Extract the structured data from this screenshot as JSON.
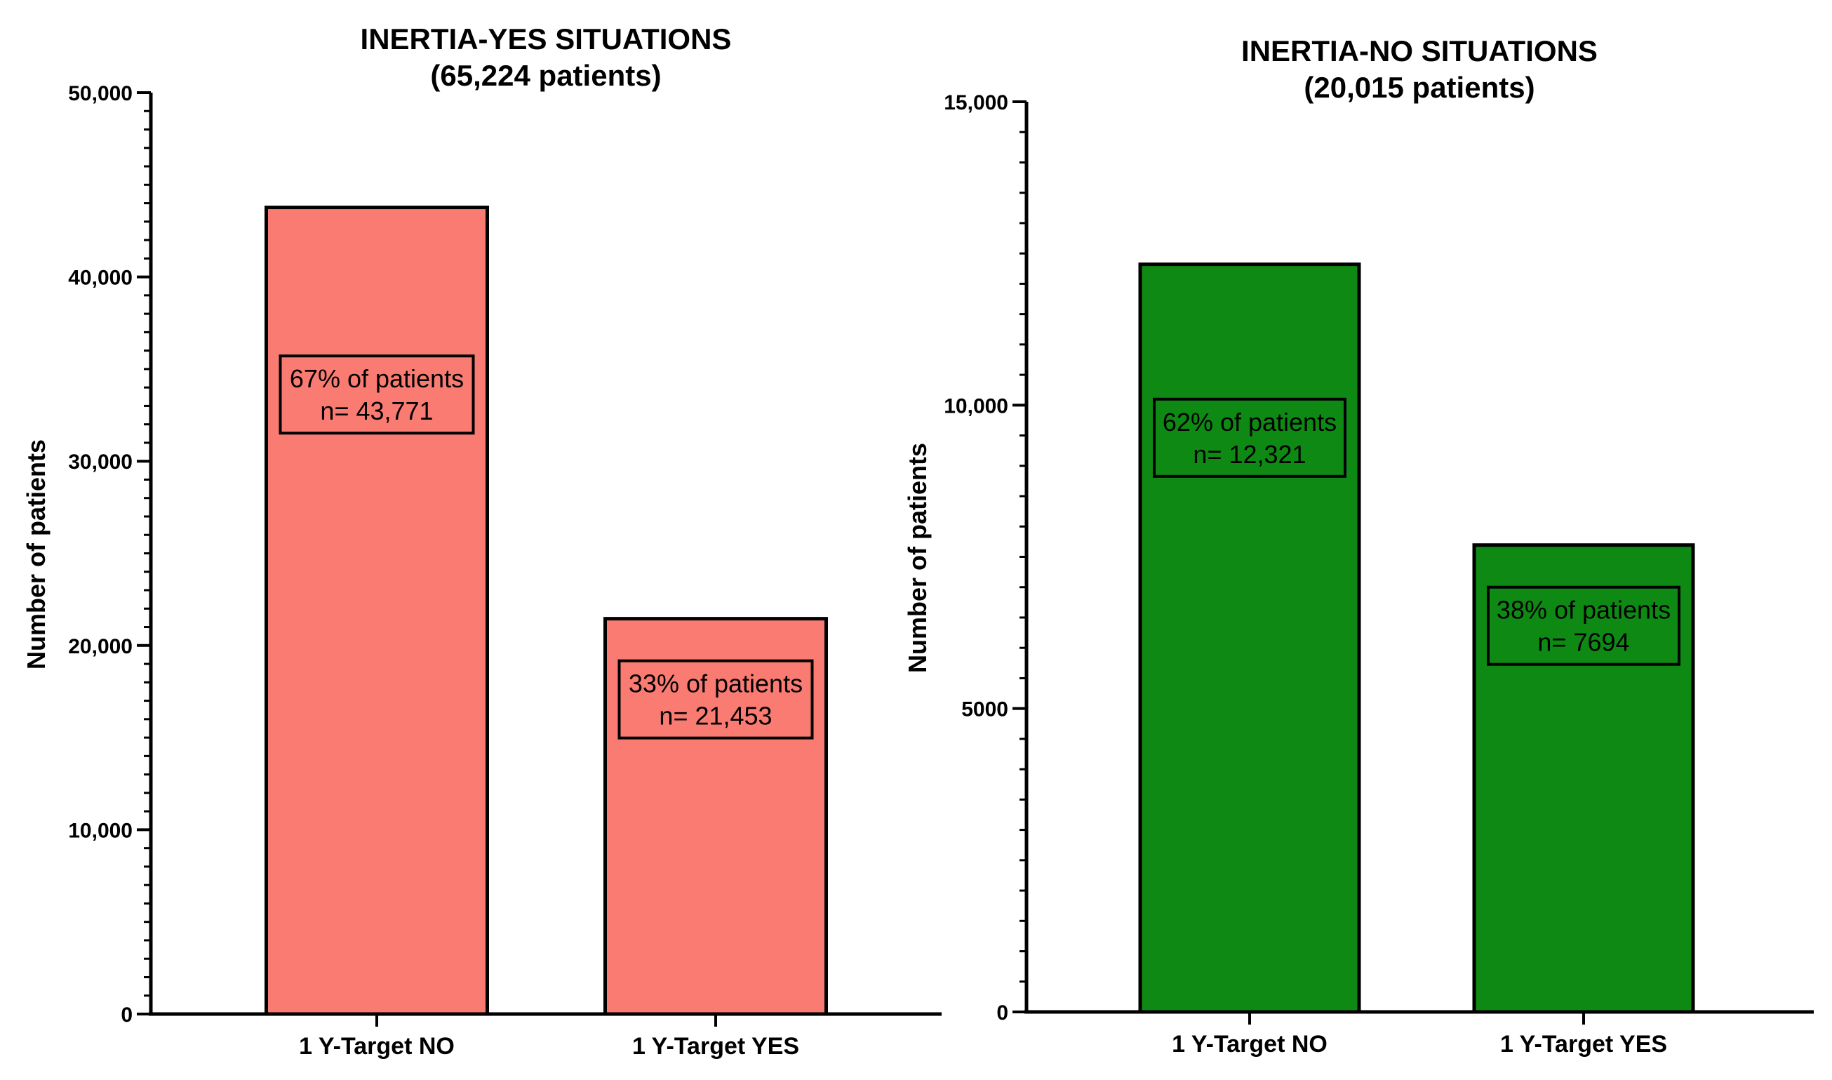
{
  "chart_data": [
    {
      "type": "bar",
      "title": "INERTIA-YES SITUATIONS",
      "subtitle": "(65,224 patients)",
      "ylabel": "Number of patients",
      "xlabel": "",
      "ylim": [
        0,
        50000
      ],
      "yticks": [
        0,
        10000,
        20000,
        30000,
        40000,
        50000
      ],
      "ytick_labels": [
        "0",
        "10,000",
        "20,000",
        "30,000",
        "40,000",
        "50,000"
      ],
      "categories": [
        "1 Y-Target NO",
        "1 Y-Target YES"
      ],
      "values": [
        43771,
        21453
      ],
      "bar_color": "#fa7b72",
      "annotations": [
        {
          "line1": "67% of patients",
          "line2": "n= 43,771"
        },
        {
          "line1": "33% of patients",
          "line2": "n= 21,453"
        }
      ]
    },
    {
      "type": "bar",
      "title": "INERTIA-NO SITUATIONS",
      "subtitle": "(20,015 patients)",
      "ylabel": "Number of patients",
      "xlabel": "",
      "ylim": [
        0,
        15000
      ],
      "yticks": [
        0,
        5000,
        10000,
        15000
      ],
      "ytick_labels": [
        "0",
        "5000",
        "10,000",
        "15,000"
      ],
      "categories": [
        "1 Y-Target NO",
        "1 Y-Target YES"
      ],
      "values": [
        12321,
        7694
      ],
      "bar_color": "#0e8a14",
      "annotations": [
        {
          "line1": "62% of patients",
          "line2": "n= 12,321"
        },
        {
          "line1": "38% of patients",
          "line2": "n= 7694"
        }
      ]
    }
  ]
}
